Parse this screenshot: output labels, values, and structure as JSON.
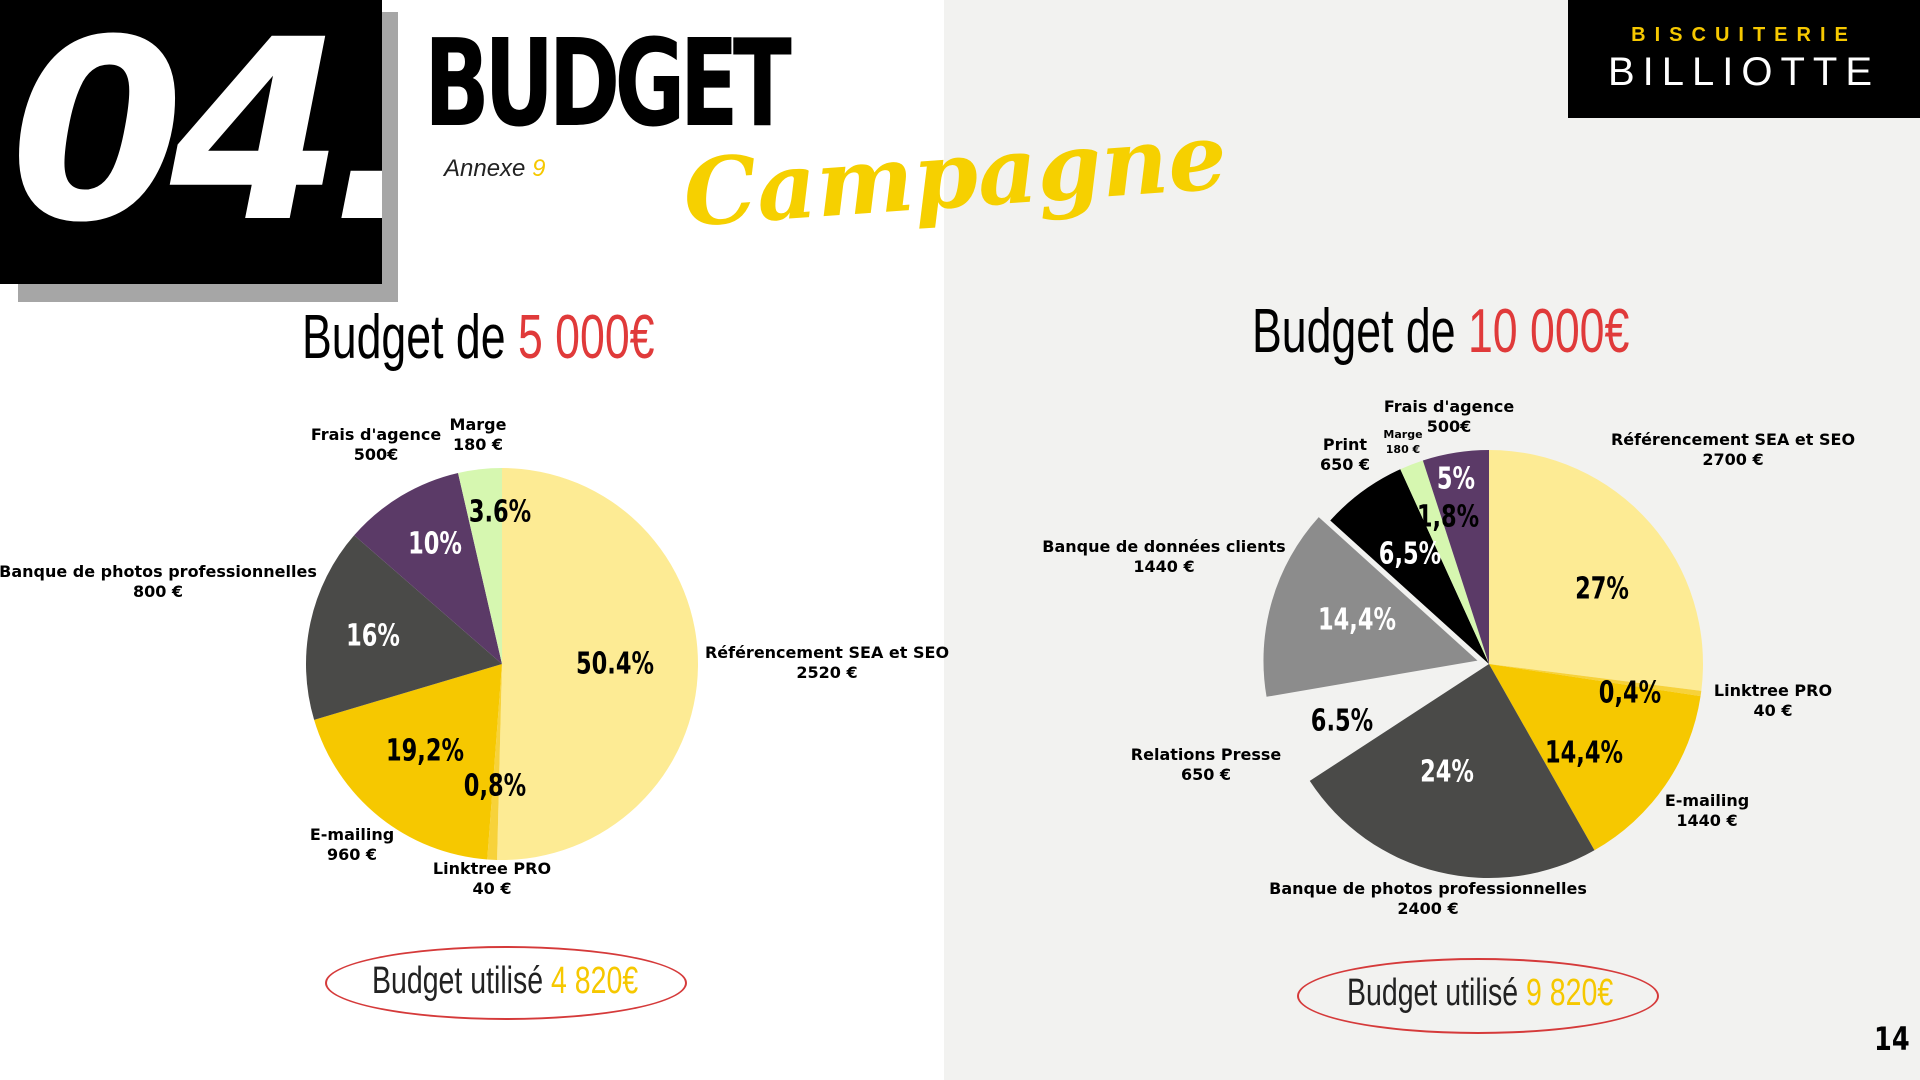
{
  "section": {
    "number": "04.",
    "title": "BUDGET",
    "annexe_label": "Annexe",
    "annexe_number": "9",
    "subtitle": "Campagne"
  },
  "brand": {
    "line1": "BISCUITERIE",
    "line2": "BILLIOTTE"
  },
  "page_number": "14",
  "colors": {
    "red": "#e03a3a",
    "yellow": "#f6c800",
    "light_yellow": "#fdeb94",
    "purple": "#5b3a67",
    "dark_gray": "#4a4a48",
    "gray": "#8c8c8c",
    "light_green": "#d6f7b0",
    "black": "#000000"
  },
  "budget_small": {
    "heading_prefix": "Budget de",
    "heading_amount": "5 000€",
    "used_prefix": "Budget utilisé",
    "used_amount": "4 820€"
  },
  "budget_large": {
    "heading_prefix": "Budget de",
    "heading_amount": "10 000€",
    "used_prefix": "Budget utilisé",
    "used_amount": "9 820€"
  },
  "chart_data": [
    {
      "type": "pie",
      "title": "Budget de 5 000€",
      "slices": [
        {
          "name": "Référencement SEA et SEO",
          "amount": "2520 €",
          "value": 50.4,
          "pct_label": "50.4%",
          "color": "#fdeb94"
        },
        {
          "name": "Linktree PRO",
          "amount": "40 €",
          "value": 0.8,
          "pct_label": "0,8%",
          "color": "#f7d23a"
        },
        {
          "name": "E-mailing",
          "amount": "960 €",
          "value": 19.2,
          "pct_label": "19,2%",
          "color": "#f6c800"
        },
        {
          "name": "Banque de photos professionnelles",
          "amount": "800 €",
          "value": 16,
          "pct_label": "16%",
          "color": "#4a4a48"
        },
        {
          "name": "Frais d'agence",
          "amount": "500€",
          "value": 10,
          "pct_label": "10%",
          "color": "#5b3a67"
        },
        {
          "name": "Marge",
          "amount": "180 €",
          "value": 3.6,
          "pct_label": "3.6%",
          "color": "#d6f7b0"
        }
      ]
    },
    {
      "type": "pie",
      "title": "Budget de 10 000€",
      "slices": [
        {
          "name": "Référencement SEA et SEO",
          "amount": "2700 €",
          "value": 27,
          "pct_label": "27%",
          "color": "#fdeb94"
        },
        {
          "name": "Linktree PRO",
          "amount": "40 €",
          "value": 0.4,
          "pct_label": "0,4%",
          "color": "#f7d23a"
        },
        {
          "name": "E-mailing",
          "amount": "1440 €",
          "value": 14.4,
          "pct_label": "14,4%",
          "color": "#f6c800"
        },
        {
          "name": "Banque de photos professionnelles",
          "amount": "2400 €",
          "value": 24,
          "pct_label": "24%",
          "color": "#4a4a48"
        },
        {
          "name": "Relations Presse",
          "amount": "650 €",
          "value": 6.5,
          "pct_label": "6.5%",
          "color": "#f2f2f0"
        },
        {
          "name": "Banque de données clients",
          "amount": "1440 €",
          "value": 14.4,
          "pct_label": "14,4%",
          "color": "#8c8c8c"
        },
        {
          "name": "Print",
          "amount": "650 €",
          "value": 6.5,
          "pct_label": "6,5%",
          "color": "#000000"
        },
        {
          "name": "Marge",
          "amount": "180 €",
          "value": 1.8,
          "pct_label": "1,8%",
          "color": "#d6f7b0"
        },
        {
          "name": "Frais d'agence",
          "amount": "500€",
          "value": 5,
          "pct_label": "5%",
          "color": "#5b3a67"
        }
      ]
    }
  ]
}
